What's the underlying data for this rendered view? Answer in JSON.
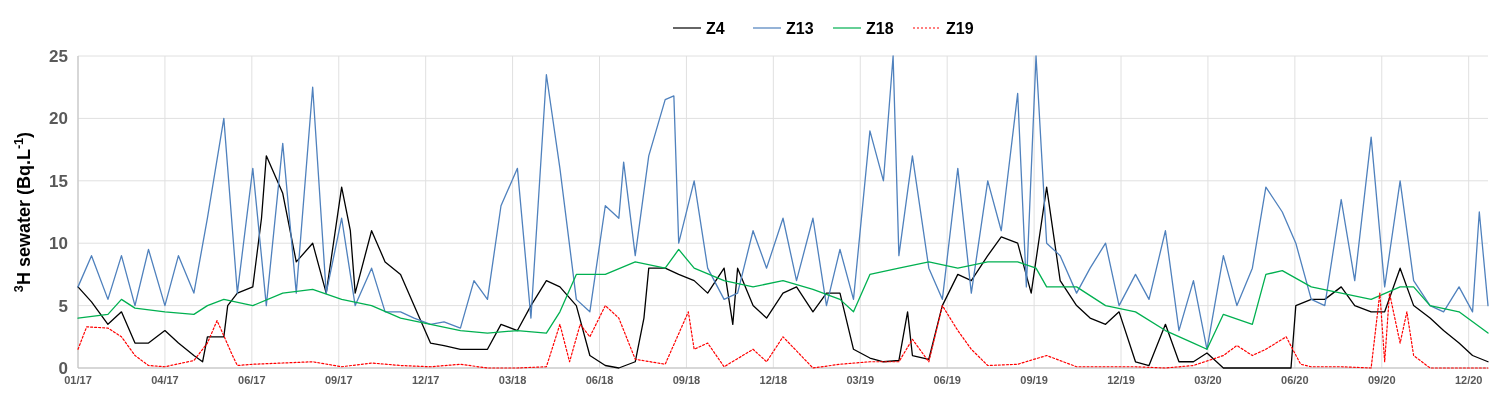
{
  "chart_data": {
    "type": "line",
    "ylabel": "$^{3}$H sewater (Bq.L$^{-1}$)",
    "xlim": [
      "2017-01-01",
      "2020-12-31"
    ],
    "ylim": [
      0,
      25
    ],
    "yticks": [
      0,
      5,
      10,
      15,
      20,
      25
    ],
    "xticks": [
      {
        "value": "2017-01-01",
        "label": "01/17"
      },
      {
        "value": "2017-04-01",
        "label": "04/17"
      },
      {
        "value": "2017-06-30",
        "label": "06/17"
      },
      {
        "value": "2017-09-28",
        "label": "09/17"
      },
      {
        "value": "2017-12-27",
        "label": "12/17"
      },
      {
        "value": "2018-03-27",
        "label": "03/18"
      },
      {
        "value": "2018-06-25",
        "label": "06/18"
      },
      {
        "value": "2018-09-23",
        "label": "09/18"
      },
      {
        "value": "2018-12-22",
        "label": "12/18"
      },
      {
        "value": "2019-03-22",
        "label": "03/19"
      },
      {
        "value": "2019-06-20",
        "label": "06/19"
      },
      {
        "value": "2019-09-18",
        "label": "09/19"
      },
      {
        "value": "2019-12-17",
        "label": "12/19"
      },
      {
        "value": "2020-03-16",
        "label": "03/20"
      },
      {
        "value": "2020-06-14",
        "label": "06/20"
      },
      {
        "value": "2020-09-12",
        "label": "09/20"
      },
      {
        "value": "2020-12-11",
        "label": "12/20"
      }
    ],
    "grid": true,
    "legend": "top",
    "series": [
      {
        "name": "Z4",
        "color": "#000000",
        "line_style": "solid",
        "x": [
          "2017-01-01",
          "2017-01-15",
          "2017-02-01",
          "2017-02-15",
          "2017-03-01",
          "2017-03-15",
          "2017-04-01",
          "2017-04-15",
          "2017-05-01",
          "2017-05-10",
          "2017-05-15",
          "2017-06-01",
          "2017-06-05",
          "2017-06-15",
          "2017-07-01",
          "2017-07-10",
          "2017-07-15",
          "2017-08-01",
          "2017-08-15",
          "2017-09-01",
          "2017-09-15",
          "2017-10-01",
          "2017-10-10",
          "2017-10-15",
          "2017-11-01",
          "2017-11-15",
          "2017-12-01",
          "2017-12-15",
          "2018-01-01",
          "2018-01-15",
          "2018-02-01",
          "2018-02-15",
          "2018-03-01",
          "2018-03-15",
          "2018-04-01",
          "2018-04-15",
          "2018-05-01",
          "2018-05-15",
          "2018-06-01",
          "2018-06-15",
          "2018-07-01",
          "2018-07-15",
          "2018-08-01",
          "2018-08-10",
          "2018-08-15",
          "2018-09-01",
          "2018-09-15",
          "2018-10-01",
          "2018-10-15",
          "2018-11-01",
          "2018-11-10",
          "2018-11-15",
          "2018-12-01",
          "2018-12-15",
          "2019-01-01",
          "2019-01-15",
          "2019-02-01",
          "2019-02-15",
          "2019-03-01",
          "2019-03-15",
          "2019-04-01",
          "2019-04-15",
          "2019-05-01",
          "2019-05-10",
          "2019-05-15",
          "2019-06-01",
          "2019-06-15",
          "2019-07-01",
          "2019-07-15",
          "2019-08-01",
          "2019-08-15",
          "2019-09-01",
          "2019-09-15",
          "2019-10-01",
          "2019-10-15",
          "2019-11-01",
          "2019-11-15",
          "2019-12-01",
          "2019-12-15",
          "2020-01-01",
          "2020-01-15",
          "2020-02-01",
          "2020-02-15",
          "2020-03-01",
          "2020-03-15",
          "2020-04-01",
          "2020-06-10",
          "2020-06-15",
          "2020-07-01",
          "2020-07-15",
          "2020-08-01",
          "2020-08-15",
          "2020-09-01",
          "2020-09-15",
          "2020-10-01",
          "2020-10-15",
          "2020-11-01",
          "2020-11-15",
          "2020-12-01",
          "2020-12-15",
          "2020-12-31"
        ],
        "values": [
          6.5,
          5.3,
          3.5,
          4.5,
          2,
          2,
          3,
          2,
          1,
          0.5,
          2.5,
          2.5,
          5,
          6,
          6.5,
          12,
          17,
          14,
          8.5,
          10,
          6,
          14.5,
          11,
          6,
          11,
          8.5,
          7.5,
          5,
          2,
          1.8,
          1.5,
          1.5,
          1.5,
          3.5,
          3,
          5,
          7,
          6.5,
          5,
          1,
          0.2,
          0,
          0.5,
          4,
          8,
          8,
          7.5,
          7,
          6,
          8,
          3.5,
          8,
          5,
          4,
          6,
          6.5,
          4.5,
          6,
          6,
          1.5,
          0.8,
          0.5,
          0.6,
          4.5,
          1,
          0.7,
          5,
          7.5,
          7,
          9,
          10.5,
          10,
          6,
          14.5,
          7,
          5,
          4,
          3.5,
          4.5,
          0.5,
          0.2,
          3.5,
          0.5,
          0.5,
          1.2,
          0,
          0,
          5,
          5.5,
          5.5,
          6.5,
          5,
          4.5,
          4.5,
          8,
          5,
          4,
          3,
          2,
          1,
          0.5
        ]
      },
      {
        "name": "Z13",
        "color": "#4f81bd",
        "line_style": "solid",
        "x": [
          "2017-01-01",
          "2017-01-15",
          "2017-02-01",
          "2017-02-15",
          "2017-03-01",
          "2017-03-15",
          "2017-04-01",
          "2017-04-15",
          "2017-05-01",
          "2017-05-15",
          "2017-06-01",
          "2017-06-15",
          "2017-07-01",
          "2017-07-15",
          "2017-08-01",
          "2017-08-15",
          "2017-09-01",
          "2017-09-15",
          "2017-10-01",
          "2017-10-15",
          "2017-11-01",
          "2017-11-15",
          "2017-12-01",
          "2017-12-15",
          "2018-01-01",
          "2018-01-15",
          "2018-02-01",
          "2018-02-15",
          "2018-03-01",
          "2018-03-15",
          "2018-04-01",
          "2018-04-15",
          "2018-05-01",
          "2018-05-15",
          "2018-06-01",
          "2018-06-15",
          "2018-07-01",
          "2018-07-15",
          "2018-07-20",
          "2018-08-01",
          "2018-08-15",
          "2018-09-01",
          "2018-09-10",
          "2018-09-15",
          "2018-10-01",
          "2018-10-15",
          "2018-11-01",
          "2018-11-15",
          "2018-12-01",
          "2018-12-15",
          "2019-01-01",
          "2019-01-15",
          "2019-02-01",
          "2019-02-15",
          "2019-03-01",
          "2019-03-15",
          "2019-04-01",
          "2019-04-15",
          "2019-04-25",
          "2019-05-01",
          "2019-05-15",
          "2019-06-01",
          "2019-06-15",
          "2019-07-01",
          "2019-07-15",
          "2019-08-01",
          "2019-08-15",
          "2019-09-01",
          "2019-09-10",
          "2019-09-20",
          "2019-10-01",
          "2019-10-15",
          "2019-11-01",
          "2019-11-15",
          "2019-12-01",
          "2019-12-15",
          "2020-01-01",
          "2020-01-15",
          "2020-02-01",
          "2020-02-15",
          "2020-03-01",
          "2020-03-15",
          "2020-04-01",
          "2020-04-15",
          "2020-05-01",
          "2020-05-15",
          "2020-06-01",
          "2020-06-15",
          "2020-07-01",
          "2020-07-15",
          "2020-08-01",
          "2020-08-15",
          "2020-09-01",
          "2020-09-15",
          "2020-10-01",
          "2020-10-15",
          "2020-11-01",
          "2020-11-15",
          "2020-12-01",
          "2020-12-15",
          "2020-12-22",
          "2020-12-31"
        ],
        "values": [
          6.5,
          9,
          5.5,
          9,
          5,
          9.5,
          5,
          9,
          6,
          12,
          20,
          6,
          16,
          5,
          18,
          6,
          22.5,
          6,
          12,
          5,
          8,
          4.5,
          4.5,
          4,
          3.5,
          3.7,
          3.2,
          7,
          5.5,
          13,
          16,
          4,
          23.5,
          16,
          5.5,
          4.5,
          13,
          12,
          16.5,
          9,
          17,
          21.5,
          21.8,
          10,
          15,
          8,
          5.5,
          6,
          11,
          8,
          12,
          7,
          12,
          5,
          9.5,
          5.5,
          19,
          15,
          25,
          9,
          17,
          8,
          5.5,
          16,
          6,
          15,
          11,
          22,
          6.5,
          25,
          10,
          9,
          6,
          8,
          10,
          5,
          7.5,
          5.5,
          11,
          3,
          7,
          1.5,
          9,
          5,
          8,
          14.5,
          12.5,
          10,
          5.5,
          5,
          13.5,
          7,
          18.5,
          6.5,
          15,
          7,
          5,
          4.5,
          6.5,
          4.5,
          12.5,
          5
        ]
      },
      {
        "name": "Z18",
        "color": "#00b050",
        "line_style": "solid",
        "x": [
          "2017-01-01",
          "2017-02-01",
          "2017-02-15",
          "2017-03-01",
          "2017-04-01",
          "2017-05-01",
          "2017-05-15",
          "2017-06-01",
          "2017-07-01",
          "2017-08-01",
          "2017-09-01",
          "2017-10-01",
          "2017-11-01",
          "2017-12-01",
          "2018-01-01",
          "2018-02-01",
          "2018-03-01",
          "2018-04-01",
          "2018-05-01",
          "2018-05-15",
          "2018-06-01",
          "2018-07-01",
          "2018-08-01",
          "2018-09-01",
          "2018-09-15",
          "2018-10-01",
          "2018-11-01",
          "2018-12-01",
          "2019-01-01",
          "2019-02-01",
          "2019-03-01",
          "2019-03-15",
          "2019-04-01",
          "2019-05-01",
          "2019-06-01",
          "2019-07-01",
          "2019-08-01",
          "2019-09-01",
          "2019-09-20",
          "2019-10-01",
          "2019-11-01",
          "2019-12-01",
          "2020-01-01",
          "2020-02-01",
          "2020-03-01",
          "2020-03-15",
          "2020-04-01",
          "2020-05-01",
          "2020-05-15",
          "2020-06-01",
          "2020-07-01",
          "2020-08-01",
          "2020-09-01",
          "2020-10-01",
          "2020-10-15",
          "2020-11-01",
          "2020-12-01",
          "2020-12-31"
        ],
        "values": [
          4,
          4.3,
          5.5,
          4.8,
          4.5,
          4.3,
          5,
          5.5,
          5,
          6,
          6.3,
          5.5,
          5,
          4,
          3.5,
          3,
          2.8,
          3,
          2.8,
          4.5,
          7.5,
          7.5,
          8.5,
          8,
          9.5,
          8,
          7,
          6.5,
          7,
          6.3,
          5.5,
          4.5,
          7.5,
          8,
          8.5,
          8,
          8.5,
          8.5,
          8,
          6.5,
          6.5,
          5,
          4.5,
          3,
          2,
          1.5,
          4.3,
          3.5,
          7.5,
          7.8,
          6.5,
          6,
          5.5,
          6.5,
          6.5,
          5,
          4.5,
          2.8
        ]
      },
      {
        "name": "Z19",
        "color": "#ff0000",
        "line_style": "dotted",
        "x": [
          "2017-01-01",
          "2017-01-10",
          "2017-02-01",
          "2017-02-15",
          "2017-03-01",
          "2017-03-15",
          "2017-04-01",
          "2017-05-01",
          "2017-05-15",
          "2017-05-25",
          "2017-06-10",
          "2017-06-15",
          "2017-07-01",
          "2017-08-01",
          "2017-09-01",
          "2017-10-01",
          "2017-11-01",
          "2017-12-01",
          "2018-01-01",
          "2018-02-01",
          "2018-03-01",
          "2018-04-01",
          "2018-05-01",
          "2018-05-15",
          "2018-05-25",
          "2018-06-05",
          "2018-06-15",
          "2018-07-01",
          "2018-07-15",
          "2018-08-01",
          "2018-09-01",
          "2018-09-25",
          "2018-10-01",
          "2018-10-15",
          "2018-11-01",
          "2018-12-01",
          "2018-12-15",
          "2019-01-01",
          "2019-02-01",
          "2019-03-01",
          "2019-04-01",
          "2019-05-01",
          "2019-05-15",
          "2019-06-01",
          "2019-06-15",
          "2019-07-01",
          "2019-07-15",
          "2019-08-01",
          "2019-09-01",
          "2019-10-01",
          "2019-11-01",
          "2019-12-01",
          "2020-01-01",
          "2020-02-01",
          "2020-03-01",
          "2020-04-01",
          "2020-04-15",
          "2020-05-01",
          "2020-05-15",
          "2020-06-05",
          "2020-06-20",
          "2020-07-01",
          "2020-08-01",
          "2020-09-01",
          "2020-09-10",
          "2020-09-15",
          "2020-09-20",
          "2020-10-01",
          "2020-10-08",
          "2020-10-15",
          "2020-11-01",
          "2020-12-31"
        ],
        "values": [
          1.5,
          3.3,
          3.2,
          2.5,
          1,
          0.2,
          0.1,
          0.6,
          2,
          3.8,
          1,
          0.2,
          0.3,
          0.4,
          0.5,
          0.1,
          0.4,
          0.2,
          0.1,
          0.3,
          0,
          0,
          0.1,
          3.5,
          0.5,
          3.5,
          2.5,
          5,
          4,
          0.7,
          0.3,
          4.5,
          1.5,
          2,
          0.1,
          1.5,
          0.5,
          2.5,
          0,
          0.3,
          0.5,
          0.5,
          2.3,
          0.5,
          5,
          3,
          1.5,
          0.2,
          0.3,
          1,
          0.1,
          0.1,
          0.1,
          0,
          0.2,
          1,
          1.8,
          1,
          1.5,
          2.5,
          0.3,
          0.1,
          0.1,
          0,
          6,
          0.5,
          6,
          2,
          4.5,
          1,
          0,
          0
        ]
      }
    ]
  }
}
